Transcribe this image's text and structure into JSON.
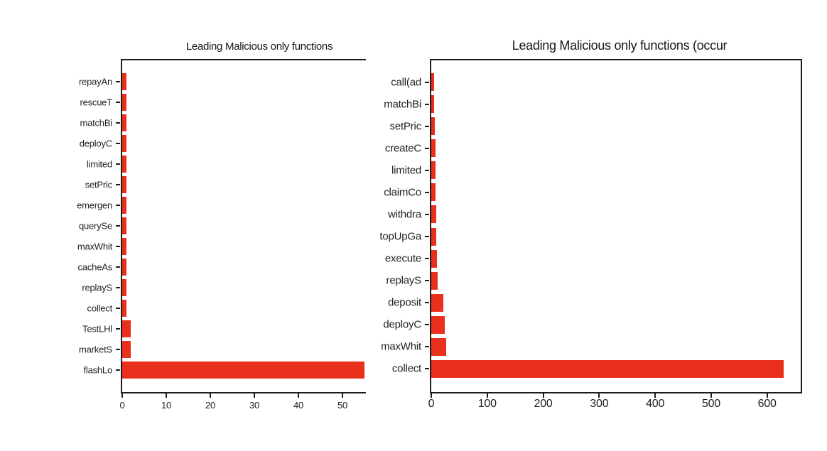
{
  "background": "#ffffff",
  "bar_color": "#e8301c",
  "axis_color": "#1c1c1c",
  "chart_data": [
    {
      "type": "bar",
      "orientation": "horizontal",
      "title": "Leading Malicious only functions",
      "categories": [
        "repayAn",
        "rescueT",
        "matchBi",
        "deployC",
        "limited",
        "setPric",
        "emergen",
        "querySe",
        "maxWhit",
        "cacheAs",
        "replayS",
        "collect",
        "TestLHl",
        "marketS",
        "flashLo"
      ],
      "values": [
        1,
        1,
        1,
        1,
        1,
        1,
        1,
        1,
        1,
        1,
        1,
        1,
        2,
        2,
        55
      ],
      "xlabel": "",
      "ylabel": "",
      "xticks": [
        0,
        10,
        20,
        30,
        40,
        50
      ],
      "xlim": [
        0,
        55
      ],
      "grid": false,
      "legend": null,
      "note": "right edge of this subplot is clipped; flashLo bar runs to the cut edge"
    },
    {
      "type": "bar",
      "orientation": "horizontal",
      "title": "Leading Malicious only functions (occur",
      "categories": [
        "call(ad",
        "matchBi",
        "setPric",
        "createC",
        "limited",
        "claimCo",
        "withdra",
        "topUpGa",
        "execute",
        "replayS",
        "deposit",
        "deployC",
        "maxWhit",
        "collect"
      ],
      "values": [
        5,
        5,
        6,
        7,
        8,
        8,
        9,
        9,
        10,
        11,
        22,
        24,
        27,
        630
      ],
      "xlabel": "",
      "ylabel": "",
      "xticks": [
        0,
        100,
        200,
        300,
        400,
        500,
        600
      ],
      "xlim": [
        0,
        660
      ],
      "grid": false,
      "legend": null
    }
  ]
}
